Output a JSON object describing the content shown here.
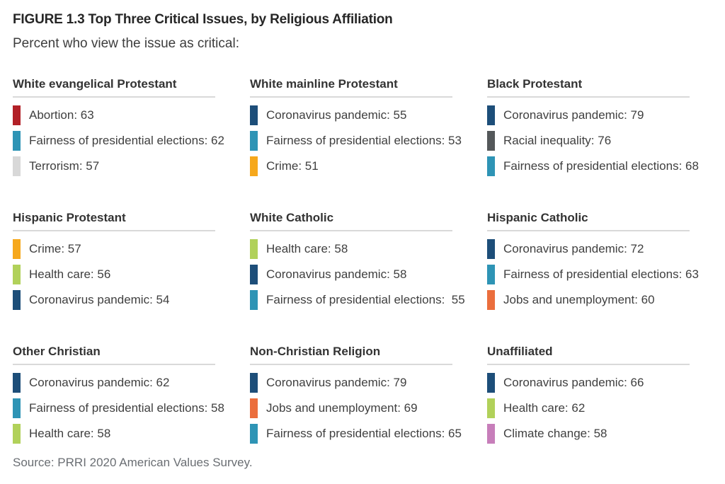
{
  "figure": {
    "title": "FIGURE 1.3 Top Three Critical Issues, by Religious Affiliation",
    "subtitle": "Percent who view the issue as critical:",
    "source": "Source: PRRI 2020 American Values Survey."
  },
  "palette": {
    "navy": "#1d4e79",
    "teal": "#2e94b5",
    "red": "#b22027",
    "amber": "#f6a81c",
    "light_gray": "#d8d8d8",
    "dark_gray": "#54585a",
    "green": "#b1d15a",
    "orange": "#eb6e3d",
    "pink": "#c77eba",
    "header_rule": "#d9d9d9"
  },
  "chart_data": {
    "type": "table",
    "title": "FIGURE 1.3 Top Three Critical Issues, by Religious Affiliation",
    "subtitle": "Percent who view the issue as critical:",
    "unit": "percent who view the issue as critical",
    "source": "Source: PRRI 2020 American Values Survey.",
    "legend_position": "none",
    "groups": [
      {
        "category": "White evangelical Protestant",
        "items": [
          {
            "issue": "Abortion",
            "value": 63,
            "color": "#b22027",
            "display": "Abortion: 63"
          },
          {
            "issue": "Fairness of presidential elections",
            "value": 62,
            "color": "#2e94b5",
            "display": "Fairness of presidential elections: 62"
          },
          {
            "issue": "Terrorism",
            "value": 57,
            "color": "#d8d8d8",
            "display": "Terrorism: 57"
          }
        ]
      },
      {
        "category": "White mainline Protestant",
        "items": [
          {
            "issue": "Coronavirus pandemic",
            "value": 55,
            "color": "#1d4e79",
            "display": "Coronavirus pandemic: 55"
          },
          {
            "issue": "Fairness of presidential elections",
            "value": 53,
            "color": "#2e94b5",
            "display": "Fairness of presidential elections: 53"
          },
          {
            "issue": "Crime",
            "value": 51,
            "color": "#f6a81c",
            "display": "Crime: 51"
          }
        ]
      },
      {
        "category": "Black Protestant",
        "items": [
          {
            "issue": "Coronavirus pandemic",
            "value": 79,
            "color": "#1d4e79",
            "display": "Coronavirus pandemic: 79"
          },
          {
            "issue": "Racial inequality",
            "value": 76,
            "color": "#54585a",
            "display": "Racial inequality: 76"
          },
          {
            "issue": "Fairness of presidential elections",
            "value": 68,
            "color": "#2e94b5",
            "display": "Fairness of presidential elections: 68"
          }
        ]
      },
      {
        "category": "Hispanic Protestant",
        "items": [
          {
            "issue": "Crime",
            "value": 57,
            "color": "#f6a81c",
            "display": "Crime: 57"
          },
          {
            "issue": "Health care",
            "value": 56,
            "color": "#b1d15a",
            "display": "Health care: 56"
          },
          {
            "issue": "Coronavirus pandemic",
            "value": 54,
            "color": "#1d4e79",
            "display": "Coronavirus pandemic: 54"
          }
        ]
      },
      {
        "category": "White Catholic",
        "items": [
          {
            "issue": "Health care",
            "value": 58,
            "color": "#b1d15a",
            "display": "Health care: 58"
          },
          {
            "issue": "Coronavirus pandemic",
            "value": 58,
            "color": "#1d4e79",
            "display": "Coronavirus pandemic: 58"
          },
          {
            "issue": "Fairness of presidential elections",
            "value": 55,
            "color": "#2e94b5",
            "display": "Fairness of presidential elections:  55"
          }
        ]
      },
      {
        "category": "Hispanic Catholic",
        "items": [
          {
            "issue": "Coronavirus pandemic",
            "value": 72,
            "color": "#1d4e79",
            "display": "Coronavirus pandemic: 72"
          },
          {
            "issue": "Fairness of presidential elections",
            "value": 63,
            "color": "#2e94b5",
            "display": "Fairness of presidential elections: 63"
          },
          {
            "issue": "Jobs and unemployment",
            "value": 60,
            "color": "#eb6e3d",
            "display": "Jobs and unemployment: 60"
          }
        ]
      },
      {
        "category": "Other Christian",
        "items": [
          {
            "issue": "Coronavirus pandemic",
            "value": 62,
            "color": "#1d4e79",
            "display": "Coronavirus pandemic: 62"
          },
          {
            "issue": "Fairness of presidential elections",
            "value": 58,
            "color": "#2e94b5",
            "display": "Fairness of presidential elections: 58"
          },
          {
            "issue": "Health care",
            "value": 58,
            "color": "#b1d15a",
            "display": "Health care: 58"
          }
        ]
      },
      {
        "category": "Non-Christian Religion",
        "items": [
          {
            "issue": "Coronavirus pandemic",
            "value": 79,
            "color": "#1d4e79",
            "display": "Coronavirus pandemic: 79"
          },
          {
            "issue": "Jobs and unemployment",
            "value": 69,
            "color": "#eb6e3d",
            "display": "Jobs and unemployment: 69"
          },
          {
            "issue": "Fairness of presidential elections",
            "value": 65,
            "color": "#2e94b5",
            "display": "Fairness of presidential elections: 65"
          }
        ]
      },
      {
        "category": "Unaffiliated",
        "items": [
          {
            "issue": "Coronavirus pandemic",
            "value": 66,
            "color": "#1d4e79",
            "display": "Coronavirus pandemic: 66"
          },
          {
            "issue": "Health care",
            "value": 62,
            "color": "#b1d15a",
            "display": "Health care: 62"
          },
          {
            "issue": "Climate change",
            "value": 58,
            "color": "#c77eba",
            "display": "Climate change: 58"
          }
        ]
      }
    ]
  }
}
